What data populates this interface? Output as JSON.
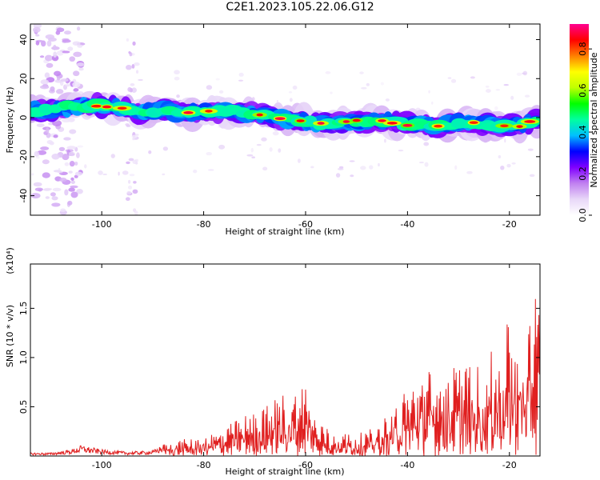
{
  "figure": {
    "title": "C2E1.2023.105.22.06.G12"
  },
  "chart_data": [
    {
      "type": "heatmap",
      "xlabel": "Height of straight line (km)",
      "ylabel": "Frequency (Hz)",
      "xlim": [
        -114,
        -14
      ],
      "ylim": [
        -50,
        48
      ],
      "x_ticks": [
        -100,
        -80,
        -60,
        -40,
        -20
      ],
      "y_ticks": [
        -40,
        -20,
        0,
        20,
        40
      ],
      "colorbar": {
        "label": "Normalized spectral amplitude",
        "range": [
          0.0,
          0.92
        ],
        "ticks": [
          "0.0",
          "0.2",
          "0.4",
          "0.6",
          "0.8"
        ],
        "tick_values": [
          0.0,
          0.2,
          0.4,
          0.6,
          0.8
        ],
        "colormap": [
          "#ffffff",
          "#e8d8f8",
          "#c080f0",
          "#8000ff",
          "#0000ff",
          "#00c0ff",
          "#00ffa0",
          "#00ff00",
          "#c0ff00",
          "#ffff00",
          "#ff8000",
          "#ff0000",
          "#ff0090"
        ]
      },
      "ridge_center_hz": [
        [
          -114,
          4
        ],
        [
          -110,
          4
        ],
        [
          -105,
          6
        ],
        [
          -100,
          6
        ],
        [
          -95,
          5
        ],
        [
          -92,
          2
        ],
        [
          -88,
          4
        ],
        [
          -84,
          2
        ],
        [
          -80,
          3
        ],
        [
          -75,
          3
        ],
        [
          -70,
          2
        ],
        [
          -66,
          0
        ],
        [
          -62,
          -1
        ],
        [
          -58,
          -3
        ],
        [
          -54,
          -3
        ],
        [
          -50,
          -2
        ],
        [
          -46,
          -1
        ],
        [
          -42,
          -3
        ],
        [
          -38,
          -4
        ],
        [
          -34,
          -4
        ],
        [
          -30,
          -3
        ],
        [
          -26,
          -3
        ],
        [
          -22,
          -4
        ],
        [
          -18,
          -4
        ],
        [
          -14,
          -1
        ]
      ]
    },
    {
      "type": "line",
      "xlabel": "Height of straight line (km)",
      "ylabel": "SNR (10 * v/v)",
      "multiplier_label": "(x10⁴)",
      "xlim": [
        -114,
        -14
      ],
      "ylim": [
        0,
        1.95
      ],
      "x_ticks": [
        -100,
        -80,
        -60,
        -40,
        -20
      ],
      "y_ticks": [
        0.5,
        1.0,
        1.5
      ],
      "series": [
        {
          "color": "#e02020",
          "envelope": [
            [
              -114,
              0.03
            ],
            [
              -110,
              0.03
            ],
            [
              -106,
              0.06
            ],
            [
              -104,
              0.1
            ],
            [
              -100,
              0.06
            ],
            [
              -95,
              0.04
            ],
            [
              -90,
              0.05
            ],
            [
              -86,
              0.16
            ],
            [
              -82,
              0.18
            ],
            [
              -78,
              0.25
            ],
            [
              -75,
              0.32
            ],
            [
              -72,
              0.42
            ],
            [
              -68,
              0.5
            ],
            [
              -65,
              0.64
            ],
            [
              -62,
              0.7
            ],
            [
              -60,
              0.78
            ],
            [
              -58,
              0.4
            ],
            [
              -55,
              0.25
            ],
            [
              -52,
              0.24
            ],
            [
              -50,
              0.22
            ],
            [
              -47,
              0.28
            ],
            [
              -44,
              0.42
            ],
            [
              -42,
              0.58
            ],
            [
              -40,
              0.7
            ],
            [
              -38,
              0.86
            ],
            [
              -36,
              0.9
            ],
            [
              -33,
              0.84
            ],
            [
              -30,
              0.95
            ],
            [
              -28,
              0.96
            ],
            [
              -26,
              0.93
            ],
            [
              -24,
              1.02
            ],
            [
              -22,
              1.2
            ],
            [
              -20,
              1.38
            ],
            [
              -18,
              1.25
            ],
            [
              -16,
              1.4
            ],
            [
              -15,
              1.78
            ],
            [
              -14,
              1.7
            ]
          ]
        }
      ]
    }
  ]
}
